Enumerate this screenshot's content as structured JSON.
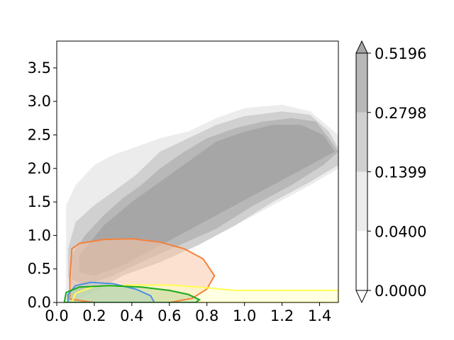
{
  "chart_data": {
    "type": "contour",
    "xlim": [
      0.0,
      1.5
    ],
    "ylim": [
      0.0,
      3.9
    ],
    "x_ticks": [
      0.0,
      0.2,
      0.4,
      0.6,
      0.8,
      1.0,
      1.2,
      1.4
    ],
    "x_tick_labels": [
      "0.0",
      "0.2",
      "0.4",
      "0.6",
      "0.8",
      "1.0",
      "1.2",
      "1.4"
    ],
    "y_ticks": [
      0.0,
      0.5,
      1.0,
      1.5,
      2.0,
      2.5,
      3.0,
      3.5
    ],
    "y_tick_labels": [
      "0.0",
      "0.5",
      "1.0",
      "1.5",
      "2.0",
      "2.5",
      "3.0",
      "3.5"
    ],
    "grid": false,
    "title": "",
    "xlabel": "",
    "ylabel": "",
    "colorbar": {
      "levels": [
        0.0,
        0.04,
        0.1399,
        0.2798,
        0.5196
      ],
      "tick_labels": [
        "0.0000",
        "0.0400",
        "0.1399",
        "0.2798",
        "0.5196"
      ],
      "colors": [
        "#ffffff",
        "#ececec",
        "#d0d0d0",
        "#b8b8b8",
        "#a6a6a6"
      ],
      "extend": "both"
    },
    "filled_levels": [
      {
        "level": "0.0400-0.1399",
        "color": "#ececec",
        "outline": [
          [
            0.05,
            1.45
          ],
          [
            0.1,
            1.75
          ],
          [
            0.2,
            2.05
          ],
          [
            0.3,
            2.2
          ],
          [
            0.4,
            2.3
          ],
          [
            0.55,
            2.45
          ],
          [
            0.7,
            2.55
          ],
          [
            0.85,
            2.75
          ],
          [
            1.0,
            2.9
          ],
          [
            1.2,
            2.95
          ],
          [
            1.35,
            2.85
          ],
          [
            1.5,
            2.5
          ],
          [
            1.5,
            2.0
          ],
          [
            1.35,
            1.75
          ],
          [
            1.15,
            1.45
          ],
          [
            0.95,
            1.15
          ],
          [
            0.75,
            0.9
          ],
          [
            0.55,
            0.7
          ],
          [
            0.35,
            0.55
          ],
          [
            0.2,
            0.3
          ],
          [
            0.1,
            0.02
          ],
          [
            0.05,
            0.2
          ]
        ]
      },
      {
        "level": "0.1399-0.2798",
        "color": "#d0d0d0",
        "outline": [
          [
            0.06,
            0.8
          ],
          [
            0.1,
            1.2
          ],
          [
            0.2,
            1.45
          ],
          [
            0.3,
            1.65
          ],
          [
            0.42,
            1.9
          ],
          [
            0.55,
            2.25
          ],
          [
            0.7,
            2.45
          ],
          [
            0.85,
            2.65
          ],
          [
            1.0,
            2.78
          ],
          [
            1.2,
            2.85
          ],
          [
            1.35,
            2.8
          ],
          [
            1.45,
            2.55
          ],
          [
            1.5,
            2.3
          ],
          [
            1.5,
            2.05
          ],
          [
            1.35,
            1.8
          ],
          [
            1.15,
            1.5
          ],
          [
            0.95,
            1.15
          ],
          [
            0.75,
            0.85
          ],
          [
            0.55,
            0.6
          ],
          [
            0.35,
            0.4
          ],
          [
            0.2,
            0.15
          ],
          [
            0.1,
            0.05
          ],
          [
            0.06,
            0.4
          ]
        ]
      },
      {
        "level": "0.2798-0.5196",
        "color": "#b8b8b8",
        "outline": [
          [
            0.08,
            0.7
          ],
          [
            0.15,
            1.0
          ],
          [
            0.25,
            1.3
          ],
          [
            0.35,
            1.55
          ],
          [
            0.45,
            1.75
          ],
          [
            0.55,
            2.0
          ],
          [
            0.68,
            2.25
          ],
          [
            0.8,
            2.45
          ],
          [
            0.95,
            2.6
          ],
          [
            1.1,
            2.7
          ],
          [
            1.25,
            2.75
          ],
          [
            1.38,
            2.7
          ],
          [
            1.45,
            2.45
          ],
          [
            1.5,
            2.25
          ],
          [
            1.42,
            2.05
          ],
          [
            1.25,
            1.75
          ],
          [
            1.05,
            1.45
          ],
          [
            0.85,
            1.1
          ],
          [
            0.65,
            0.85
          ],
          [
            0.45,
            0.6
          ],
          [
            0.3,
            0.4
          ],
          [
            0.15,
            0.25
          ],
          [
            0.08,
            0.35
          ]
        ]
      },
      {
        "level": "above 0.5196",
        "color": "#a6a6a6",
        "outline": [
          [
            0.12,
            0.7
          ],
          [
            0.25,
            1.15
          ],
          [
            0.4,
            1.5
          ],
          [
            0.55,
            1.8
          ],
          [
            0.7,
            2.1
          ],
          [
            0.85,
            2.4
          ],
          [
            1.0,
            2.55
          ],
          [
            1.15,
            2.65
          ],
          [
            1.3,
            2.65
          ],
          [
            1.42,
            2.5
          ],
          [
            1.48,
            2.25
          ],
          [
            1.35,
            2.05
          ],
          [
            1.15,
            1.75
          ],
          [
            0.95,
            1.45
          ],
          [
            0.75,
            1.15
          ],
          [
            0.55,
            0.85
          ],
          [
            0.35,
            0.55
          ],
          [
            0.2,
            0.4
          ],
          [
            0.12,
            0.45
          ]
        ]
      }
    ],
    "series": [
      {
        "color": "#f5813a",
        "fill": "#f9c8aa",
        "fill_opacity": 0.55,
        "contour": [
          [
            0.07,
            0.05
          ],
          [
            0.07,
            0.35
          ],
          [
            0.08,
            0.8
          ],
          [
            0.12,
            0.88
          ],
          [
            0.25,
            0.94
          ],
          [
            0.4,
            0.95
          ],
          [
            0.55,
            0.9
          ],
          [
            0.68,
            0.8
          ],
          [
            0.78,
            0.65
          ],
          [
            0.84,
            0.4
          ],
          [
            0.8,
            0.2
          ],
          [
            0.72,
            0.06
          ],
          [
            0.6,
            0.0
          ],
          [
            0.2,
            0.0
          ],
          [
            0.07,
            0.05
          ]
        ]
      },
      {
        "color": "#ffff55",
        "fill": "#ffffc8",
        "fill_opacity": 0.55,
        "contour": [
          [
            0.08,
            0.0
          ],
          [
            0.1,
            0.14
          ],
          [
            0.2,
            0.24
          ],
          [
            0.4,
            0.26
          ],
          [
            0.6,
            0.26
          ],
          [
            0.8,
            0.22
          ],
          [
            0.95,
            0.18
          ],
          [
            1.2,
            0.18
          ],
          [
            1.5,
            0.18
          ],
          [
            1.5,
            0.0
          ],
          [
            0.08,
            0.0
          ]
        ]
      },
      {
        "color": "#4a90e2",
        "fill": "#a9c8ee",
        "fill_opacity": 0.35,
        "contour": [
          [
            0.06,
            0.0
          ],
          [
            0.06,
            0.12
          ],
          [
            0.1,
            0.25
          ],
          [
            0.18,
            0.3
          ],
          [
            0.3,
            0.28
          ],
          [
            0.42,
            0.2
          ],
          [
            0.5,
            0.1
          ],
          [
            0.52,
            0.0
          ],
          [
            0.06,
            0.0
          ]
        ]
      },
      {
        "color": "#1aab1a",
        "fill": "#9ccc7a",
        "fill_opacity": 0.35,
        "contour": [
          [
            0.04,
            0.0
          ],
          [
            0.05,
            0.15
          ],
          [
            0.12,
            0.23
          ],
          [
            0.28,
            0.25
          ],
          [
            0.45,
            0.23
          ],
          [
            0.6,
            0.18
          ],
          [
            0.7,
            0.12
          ],
          [
            0.76,
            0.04
          ],
          [
            0.74,
            0.0
          ],
          [
            0.04,
            0.0
          ]
        ]
      }
    ]
  }
}
